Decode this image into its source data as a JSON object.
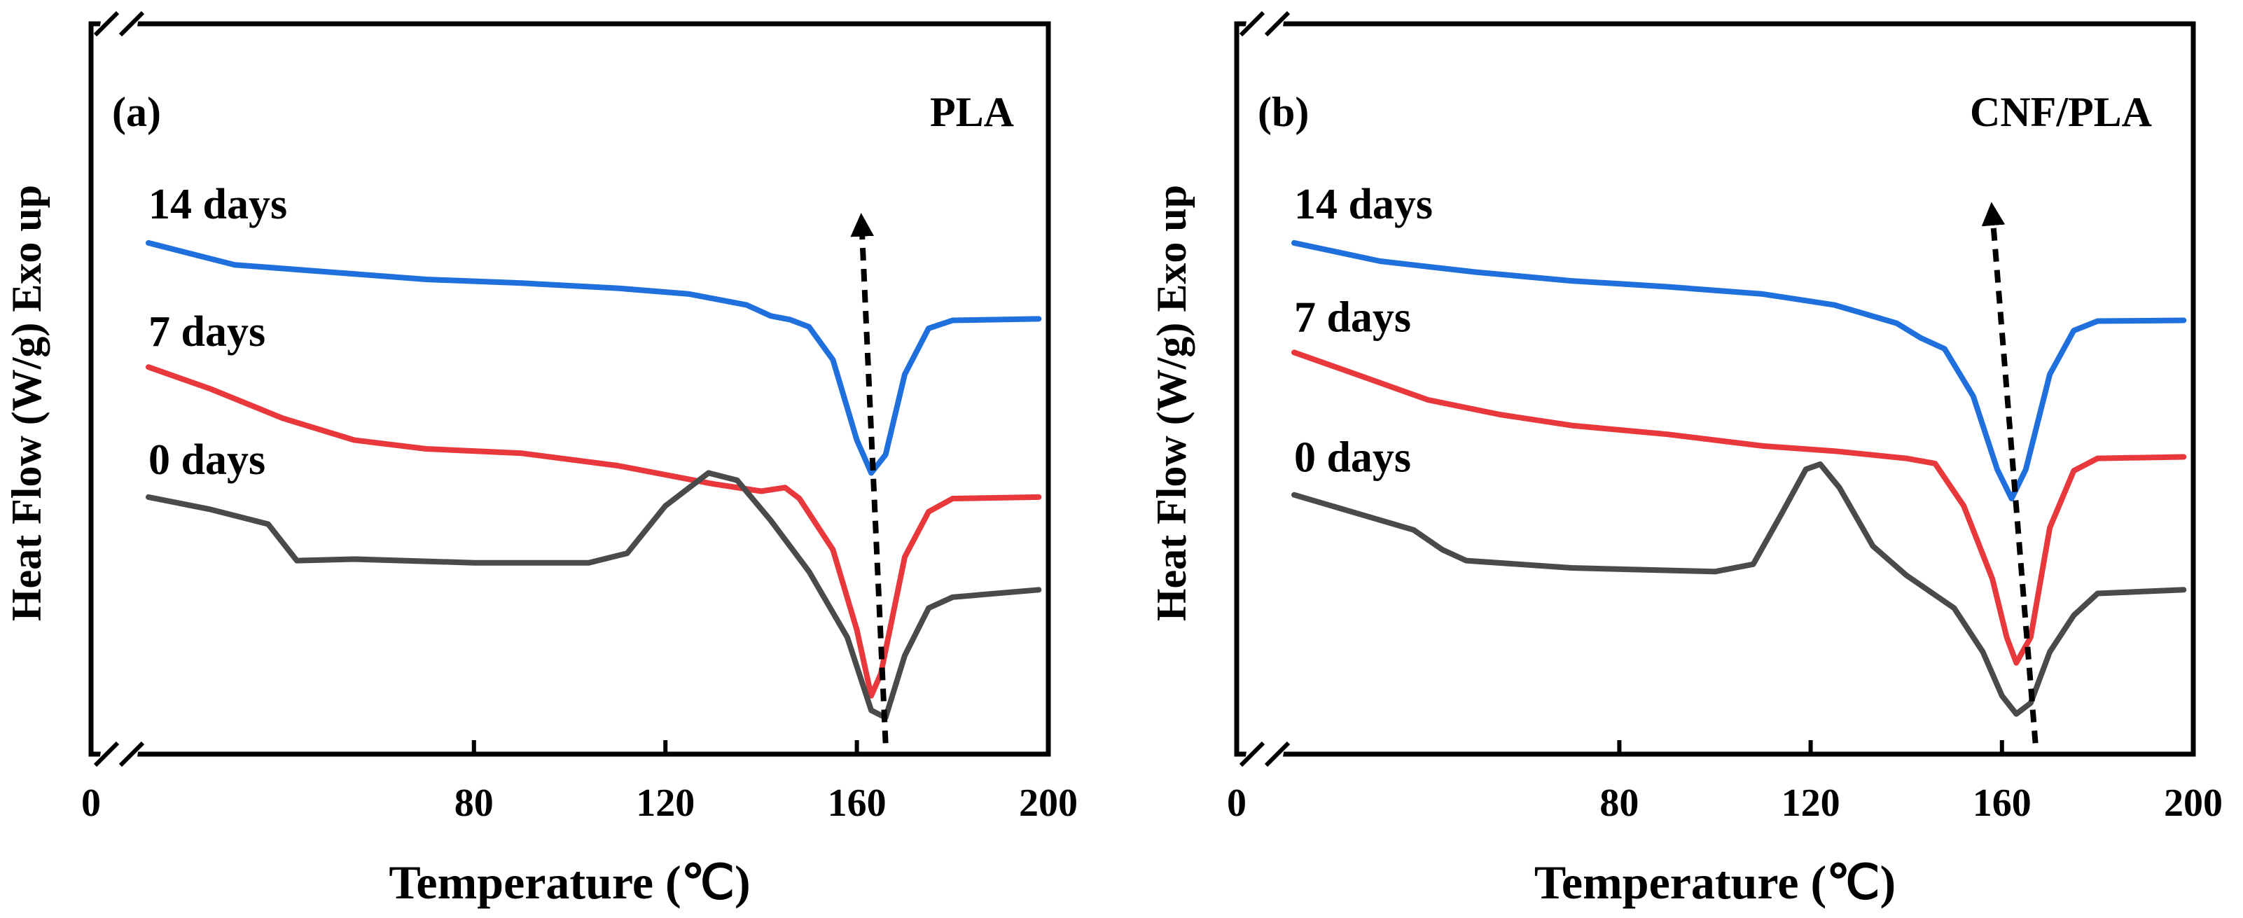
{
  "chart_data": [
    {
      "type": "line",
      "panel_label": "(a)",
      "title": "PLA",
      "xlabel": "Temperature (℃)",
      "ylabel": "Heat Flow (W/g) Exo up",
      "xlim": [
        0,
        200
      ],
      "ylim": [
        0,
        100
      ],
      "xticks": [
        "0",
        "80",
        "120",
        "160",
        "200"
      ],
      "x_axis_break": "between 0 and 80",
      "y_axis_break": "top and bottom of y axis",
      "yticks_shown": false,
      "series": [
        {
          "name": "14 days",
          "color": "#1f6fdc",
          "points": [
            [
              12,
              70
            ],
            [
              30,
              67
            ],
            [
              50,
              66
            ],
            [
              70,
              65
            ],
            [
              90,
              64.5
            ],
            [
              110,
              63.8
            ],
            [
              125,
              63
            ],
            [
              137,
              61.5
            ],
            [
              142,
              60
            ],
            [
              146,
              59.5
            ],
            [
              150,
              58.5
            ],
            [
              155,
              54
            ],
            [
              160,
              43
            ],
            [
              163,
              38.5
            ],
            [
              166,
              41
            ],
            [
              170,
              52
            ],
            [
              175,
              58.3
            ],
            [
              180,
              59.4
            ],
            [
              198,
              59.6
            ]
          ]
        },
        {
          "name": "7 days",
          "color": "#e8383b",
          "points": [
            [
              12,
              53
            ],
            [
              25,
              50
            ],
            [
              40,
              46
            ],
            [
              55,
              43
            ],
            [
              70,
              41.8
            ],
            [
              90,
              41.2
            ],
            [
              110,
              39.5
            ],
            [
              130,
              37
            ],
            [
              140,
              36
            ],
            [
              145,
              36.5
            ],
            [
              148,
              35
            ],
            [
              155,
              28
            ],
            [
              160,
              17
            ],
            [
              163,
              8
            ],
            [
              165,
              11
            ],
            [
              170,
              27
            ],
            [
              175,
              33.2
            ],
            [
              180,
              35
            ],
            [
              198,
              35.2
            ]
          ]
        },
        {
          "name": "0 days",
          "color": "#4a4a4a",
          "points": [
            [
              12,
              35.2
            ],
            [
              25,
              33.5
            ],
            [
              37,
              31.5
            ],
            [
              43,
              26.5
            ],
            [
              55,
              26.7
            ],
            [
              80,
              26.2
            ],
            [
              104,
              26.2
            ],
            [
              112,
              27.5
            ],
            [
              120,
              34
            ],
            [
              129,
              38.5
            ],
            [
              135,
              37.5
            ],
            [
              142,
              32
            ],
            [
              150,
              25
            ],
            [
              158,
              16
            ],
            [
              163,
              6
            ],
            [
              166,
              5
            ],
            [
              170,
              13.5
            ],
            [
              175,
              20
            ],
            [
              180,
              21.5
            ],
            [
              198,
              22.5
            ]
          ]
        }
      ],
      "annotations": [
        {
          "type": "dashed-arrow",
          "from": [
            166,
            1.5
          ],
          "to": [
            161,
            72.5
          ],
          "head": "end"
        }
      ]
    },
    {
      "type": "line",
      "panel_label": "(b)",
      "title": "CNF/PLA",
      "xlabel": "Temperature (℃)",
      "ylabel": "Heat Flow (W/g) Exo up",
      "xlim": [
        0,
        200
      ],
      "ylim": [
        0,
        100
      ],
      "xticks": [
        "0",
        "80",
        "120",
        "160",
        "200"
      ],
      "x_axis_break": "between 0 and 80",
      "y_axis_break": "top and bottom of y axis",
      "yticks_shown": false,
      "series": [
        {
          "name": "14 days",
          "color": "#1f6fdc",
          "points": [
            [
              12,
              70
            ],
            [
              30,
              67.5
            ],
            [
              50,
              66
            ],
            [
              70,
              64.8
            ],
            [
              90,
              64
            ],
            [
              110,
              63
            ],
            [
              125,
              61.5
            ],
            [
              138,
              59
            ],
            [
              143,
              57
            ],
            [
              148,
              55.5
            ],
            [
              154,
              49
            ],
            [
              159,
              39
            ],
            [
              162,
              35
            ],
            [
              165,
              39
            ],
            [
              170,
              52
            ],
            [
              175,
              58
            ],
            [
              180,
              59.3
            ],
            [
              198,
              59.4
            ]
          ]
        },
        {
          "name": "7 days",
          "color": "#e8383b",
          "points": [
            [
              12,
              55
            ],
            [
              25,
              52
            ],
            [
              40,
              48.5
            ],
            [
              55,
              46.5
            ],
            [
              70,
              45
            ],
            [
              90,
              43.8
            ],
            [
              110,
              42.2
            ],
            [
              125,
              41.5
            ],
            [
              140,
              40.5
            ],
            [
              146,
              39.8
            ],
            [
              152,
              34
            ],
            [
              158,
              24
            ],
            [
              161,
              16
            ],
            [
              163,
              12.5
            ],
            [
              166,
              16
            ],
            [
              170,
              31
            ],
            [
              175,
              38.8
            ],
            [
              180,
              40.5
            ],
            [
              198,
              40.7
            ]
          ]
        },
        {
          "name": "0 days",
          "color": "#4a4a4a",
          "points": [
            [
              12,
              35.5
            ],
            [
              25,
              33
            ],
            [
              37,
              30.7
            ],
            [
              43,
              28
            ],
            [
              48,
              26.5
            ],
            [
              70,
              25.5
            ],
            [
              100,
              25
            ],
            [
              108,
              26
            ],
            [
              114,
              33
            ],
            [
              119,
              39
            ],
            [
              122,
              39.7
            ],
            [
              126,
              36.5
            ],
            [
              133,
              28.5
            ],
            [
              140,
              24.5
            ],
            [
              150,
              20
            ],
            [
              156,
              14
            ],
            [
              160,
              8
            ],
            [
              163,
              5.5
            ],
            [
              166,
              7
            ],
            [
              170,
              14
            ],
            [
              175,
              19
            ],
            [
              180,
              22
            ],
            [
              198,
              22.5
            ]
          ]
        }
      ],
      "annotations": [
        {
          "type": "dashed-arrow",
          "from": [
            167,
            1.5
          ],
          "to": [
            158,
            74
          ],
          "head": "end"
        }
      ]
    }
  ]
}
